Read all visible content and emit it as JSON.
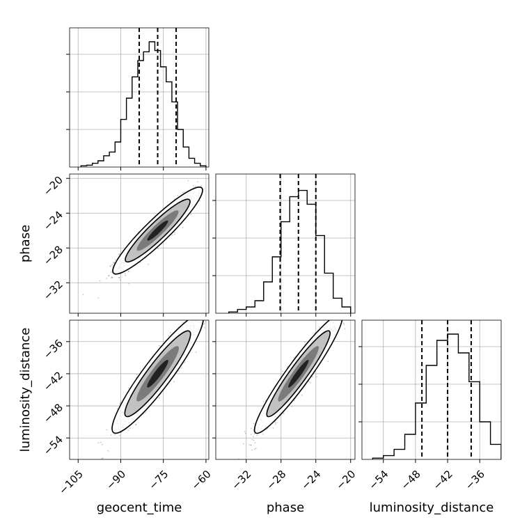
{
  "chart_data": {
    "type": "corner",
    "parameters": [
      "geocent_time",
      "phase",
      "luminosity_distance"
    ],
    "axis_labels": {
      "bottom": [
        "geocent_time",
        "phase",
        "luminosity_distance"
      ],
      "left": [
        "phase",
        "luminosity_distance"
      ]
    },
    "ranges": {
      "geocent_time": [
        -108,
        -59
      ],
      "phase": [
        -35.5,
        -19.5
      ],
      "luminosity_distance": [
        -58,
        -32
      ]
    },
    "ticks": {
      "geocent_time": [
        "−105",
        "−90",
        "−75",
        "−60"
      ],
      "phase": [
        "−32",
        "−28",
        "−24",
        "−20"
      ],
      "luminosity_distance": [
        "−54",
        "−48",
        "−42",
        "−36"
      ]
    },
    "tick_values": {
      "geocent_time": [
        -105,
        -90,
        -75,
        -60
      ],
      "phase": [
        -32,
        -28,
        -24,
        -20
      ],
      "luminosity_distance": [
        -54,
        -48,
        -42,
        -36
      ]
    },
    "quantiles": {
      "geocent_time": [
        -83.5,
        -77.0,
        -70.5
      ],
      "phase": [
        -28.1,
        -26.0,
        -24.0
      ],
      "luminosity_distance": [
        -46.8,
        -42.0,
        -37.6
      ]
    },
    "histograms": {
      "geocent_time": {
        "edges": [
          -104,
          -102,
          -100,
          -98,
          -96,
          -94,
          -92,
          -90,
          -88,
          -86,
          -84,
          -82,
          -80,
          -78,
          -76,
          -74,
          -72,
          -70,
          -68,
          -66,
          -64,
          -62,
          -60
        ],
        "counts": [
          0.01,
          0.015,
          0.03,
          0.05,
          0.09,
          0.12,
          0.2,
          0.38,
          0.55,
          0.72,
          0.85,
          0.92,
          1.0,
          0.93,
          0.8,
          0.68,
          0.52,
          0.3,
          0.16,
          0.07,
          0.03,
          0.01
        ]
      },
      "phase": {
        "edges": [
          -34,
          -33,
          -32,
          -31,
          -30,
          -29,
          -28,
          -27,
          -26,
          -25,
          -24,
          -23,
          -22,
          -21,
          -20
        ],
        "counts": [
          0.01,
          0.03,
          0.05,
          0.1,
          0.25,
          0.45,
          0.73,
          0.93,
          0.98,
          0.87,
          0.62,
          0.32,
          0.12,
          0.05
        ]
      },
      "luminosity_distance": {
        "edges": [
          -56,
          -54,
          -52,
          -50,
          -48,
          -46,
          -44,
          -42,
          -40,
          -38,
          -36,
          -34,
          -32
        ],
        "counts": [
          0.01,
          0.03,
          0.08,
          0.2,
          0.45,
          0.75,
          0.95,
          1.0,
          0.85,
          0.62,
          0.3,
          0.12
        ]
      }
    },
    "correlations": {
      "phase_vs_geocent_time": 0.93,
      "luminosity_distance_vs_geocent_time": 0.93,
      "luminosity_distance_vs_phase": 0.95
    },
    "grid": true
  }
}
